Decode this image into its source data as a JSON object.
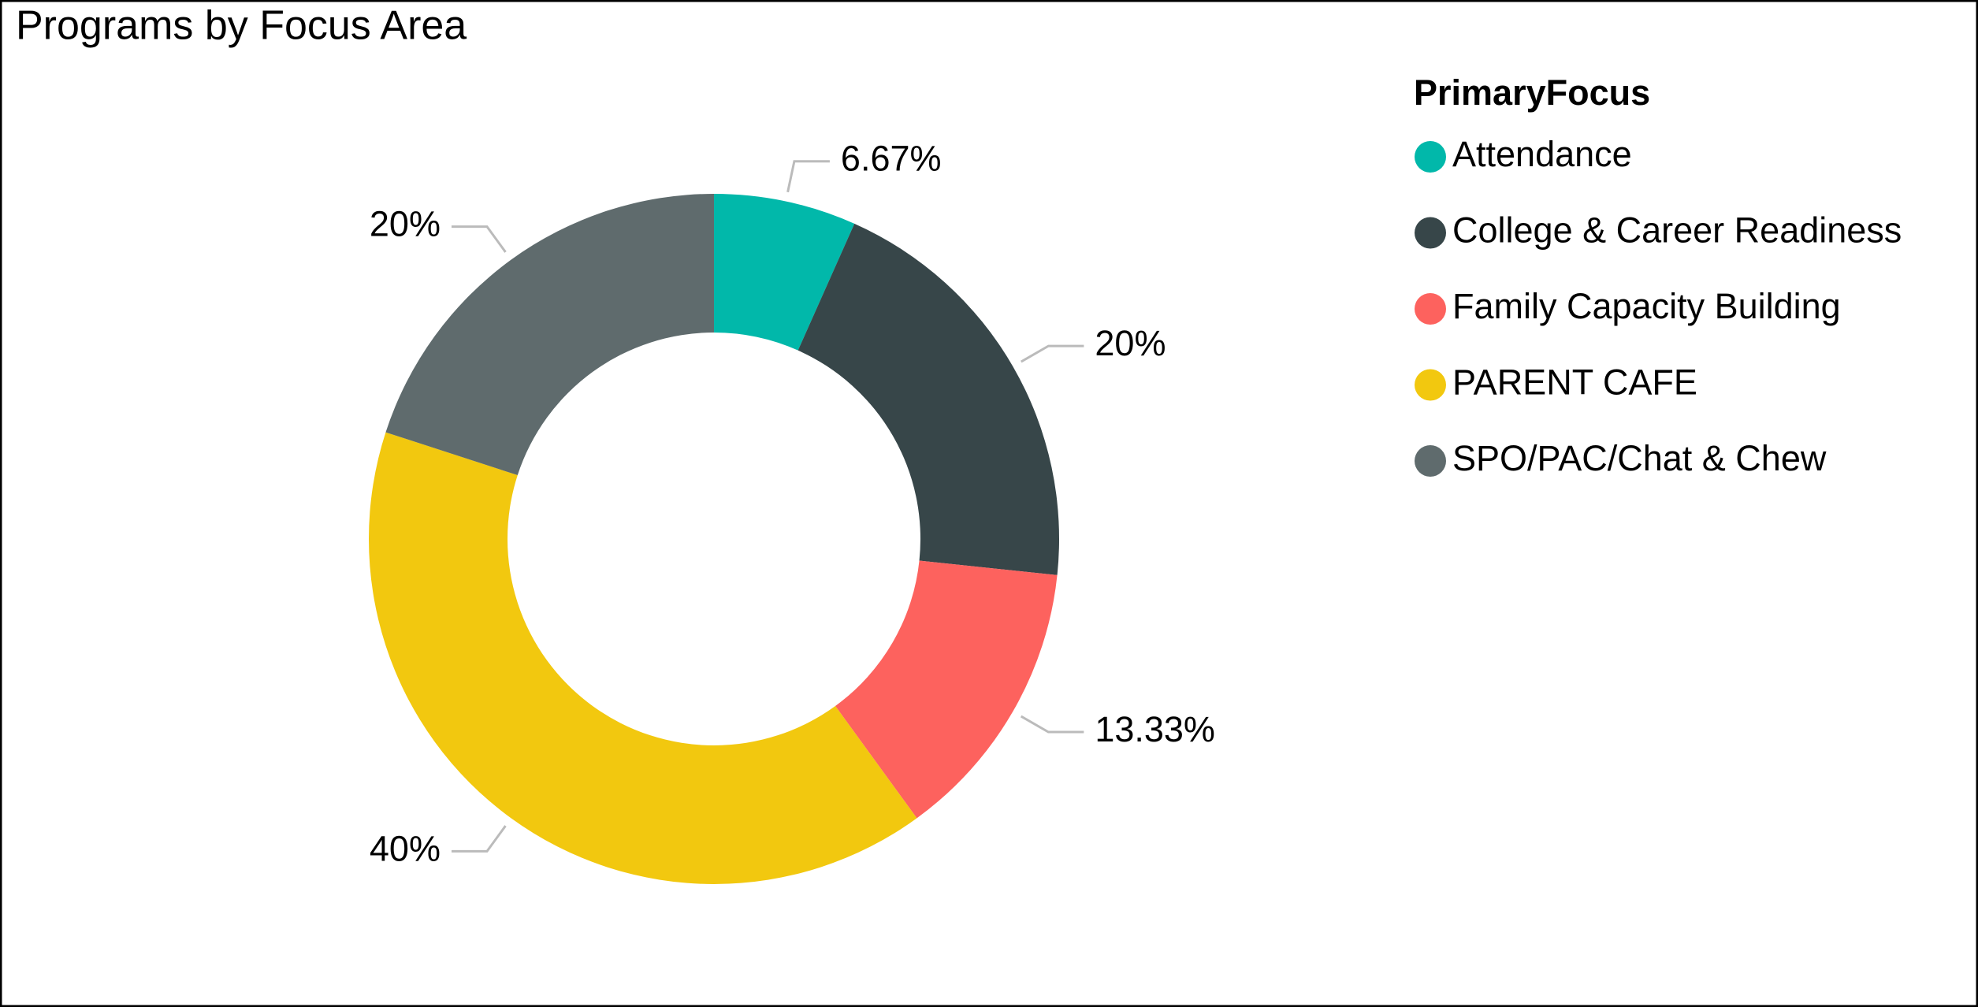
{
  "chart_data": {
    "type": "pie",
    "title": "Programs by Focus Area",
    "legend_title": "PrimaryFocus",
    "categories": [
      "Attendance",
      "College & Career Readiness",
      "Family Capacity Building",
      "PARENT CAFE",
      "SPO/PAC/Chat & Chew"
    ],
    "values": [
      6.67,
      20,
      13.33,
      40,
      20
    ],
    "value_labels": [
      "6.67%",
      "20%",
      "13.33%",
      "40%",
      "20%"
    ],
    "colors": [
      "#01B8AA",
      "#374649",
      "#FD625E",
      "#F2C80F",
      "#5F6B6D"
    ],
    "donut": true
  }
}
